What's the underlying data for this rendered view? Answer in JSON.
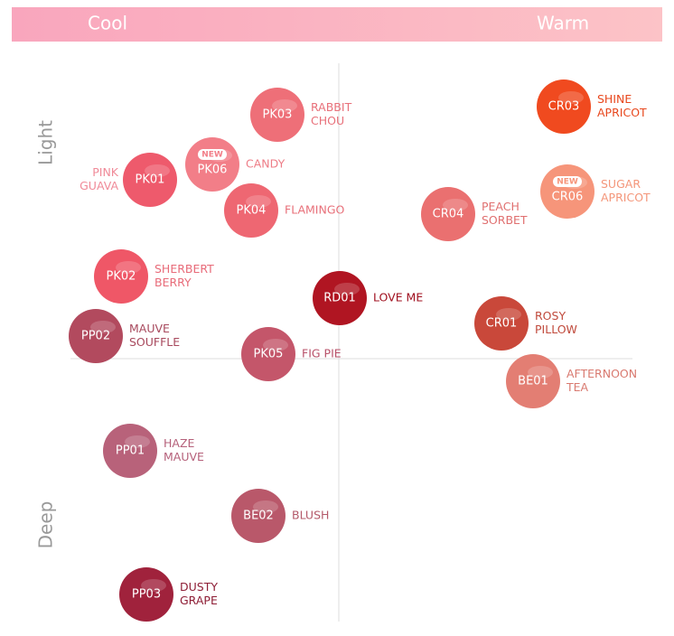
{
  "header": {
    "left": "Cool",
    "right": "Warm"
  },
  "axis": {
    "top": "Light",
    "bottom": "Deep"
  },
  "nodes": [
    {
      "code": "PK03",
      "name": [
        "RABBIT",
        "CHOU"
      ]
    },
    {
      "code": "PK06",
      "badge": "NEW",
      "name": [
        "CANDY"
      ]
    },
    {
      "code": "PK01",
      "name": [
        "PINK",
        "GUAVA"
      ]
    },
    {
      "code": "PK04",
      "name": [
        "FLAMINGO"
      ]
    },
    {
      "code": "CR03",
      "name": [
        "SHINE",
        "APRICOT"
      ]
    },
    {
      "code": "CR06",
      "badge": "NEW",
      "name": [
        "SUGAR",
        "APRICOT"
      ]
    },
    {
      "code": "CR04",
      "name": [
        "PEACH",
        "SORBET"
      ]
    },
    {
      "code": "PK02",
      "name": [
        "SHERBERT",
        "BERRY"
      ]
    },
    {
      "code": "RD01",
      "name": [
        "LOVE ME"
      ]
    },
    {
      "code": "CR01",
      "name": [
        "ROSY",
        "PILLOW"
      ]
    },
    {
      "code": "PP02",
      "name": [
        "MAUVE",
        "SOUFFLE"
      ]
    },
    {
      "code": "PK05",
      "name": [
        "FIG PIE"
      ]
    },
    {
      "code": "BE01",
      "name": [
        "AFTERNOON",
        "TEA"
      ]
    },
    {
      "code": "PP01",
      "name": [
        "HAZE",
        "MAUVE"
      ]
    },
    {
      "code": "BE02",
      "name": [
        "BLUSH"
      ]
    },
    {
      "code": "PP03",
      "name": [
        "DUSTY",
        "GRAPE"
      ]
    }
  ]
}
